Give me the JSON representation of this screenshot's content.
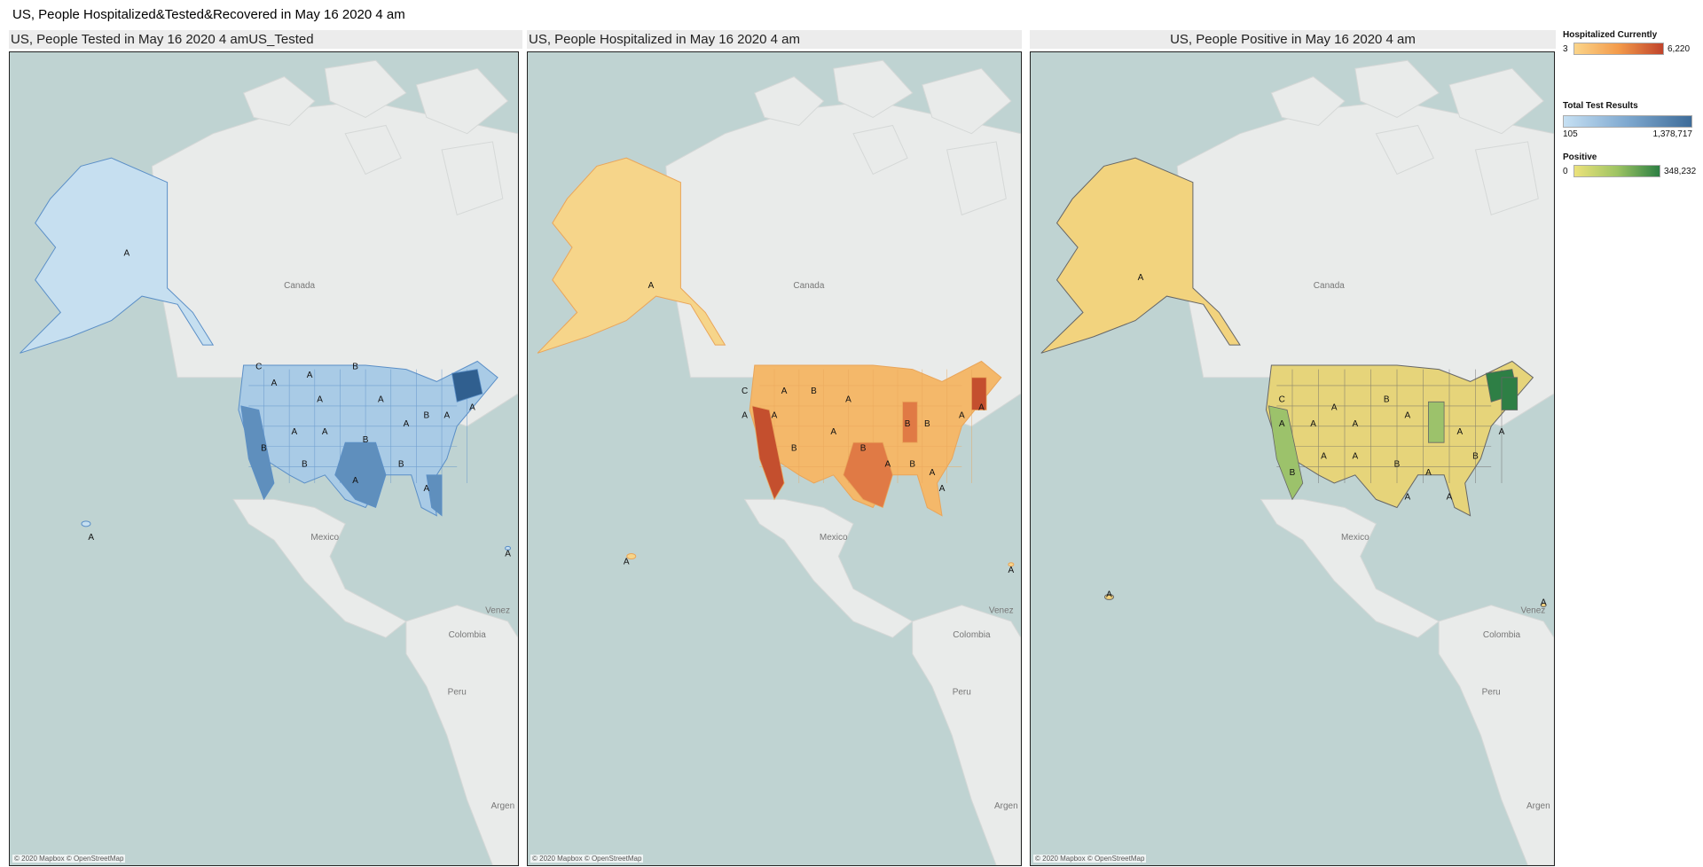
{
  "dashboard_title": "US, People Hospitalized&Tested&Recovered in May 16 2020 4 am",
  "attribution": "© 2020 Mapbox © OpenStreetMap",
  "place_names": {
    "canada": "Canada",
    "mexico": "Mexico",
    "colombia": "Colombia",
    "peru": "Peru",
    "venezuela": "Venez",
    "argentina": "Argen"
  },
  "panels": [
    {
      "id": "tested",
      "title": "US, People Tested in May 16 2020 4 amUS_Tested",
      "alaska_color": "#c6dff0",
      "contig_color": "#a9cbe6",
      "hot_colors": [
        "#5f8fbd",
        "#305f8f"
      ],
      "line": "#5b8fc7"
    },
    {
      "id": "hospitalized",
      "title": "US, People Hospitalized in May 16 2020 4 am",
      "alaska_color": "#f6d58a",
      "contig_color": "#f4b86a",
      "hot_colors": [
        "#e07a45",
        "#c44f2e"
      ],
      "line": "#e9a55a"
    },
    {
      "id": "positive",
      "title": "US, People Positive in May 16 2020 4 am",
      "alaska_color": "#f2d37e",
      "contig_color": "#e6d47a",
      "hot_colors": [
        "#9cc26b",
        "#2e7f45"
      ],
      "line": "#666666"
    }
  ],
  "legends": [
    {
      "title": "Hospitalized Currently",
      "min": "3",
      "max": "6,220",
      "colors": [
        "#fbd58a",
        "#f39a4a",
        "#c0432b"
      ]
    },
    {
      "title": "Total Test Results",
      "min": "105",
      "max": "1,378,717",
      "colors": [
        "#c6e0f3",
        "#7ea8cf",
        "#3e6c99"
      ]
    },
    {
      "title": "Positive",
      "min": "0",
      "max": "348,232",
      "colors": [
        "#ece27b",
        "#9ec463",
        "#2c7f43"
      ]
    }
  ]
}
